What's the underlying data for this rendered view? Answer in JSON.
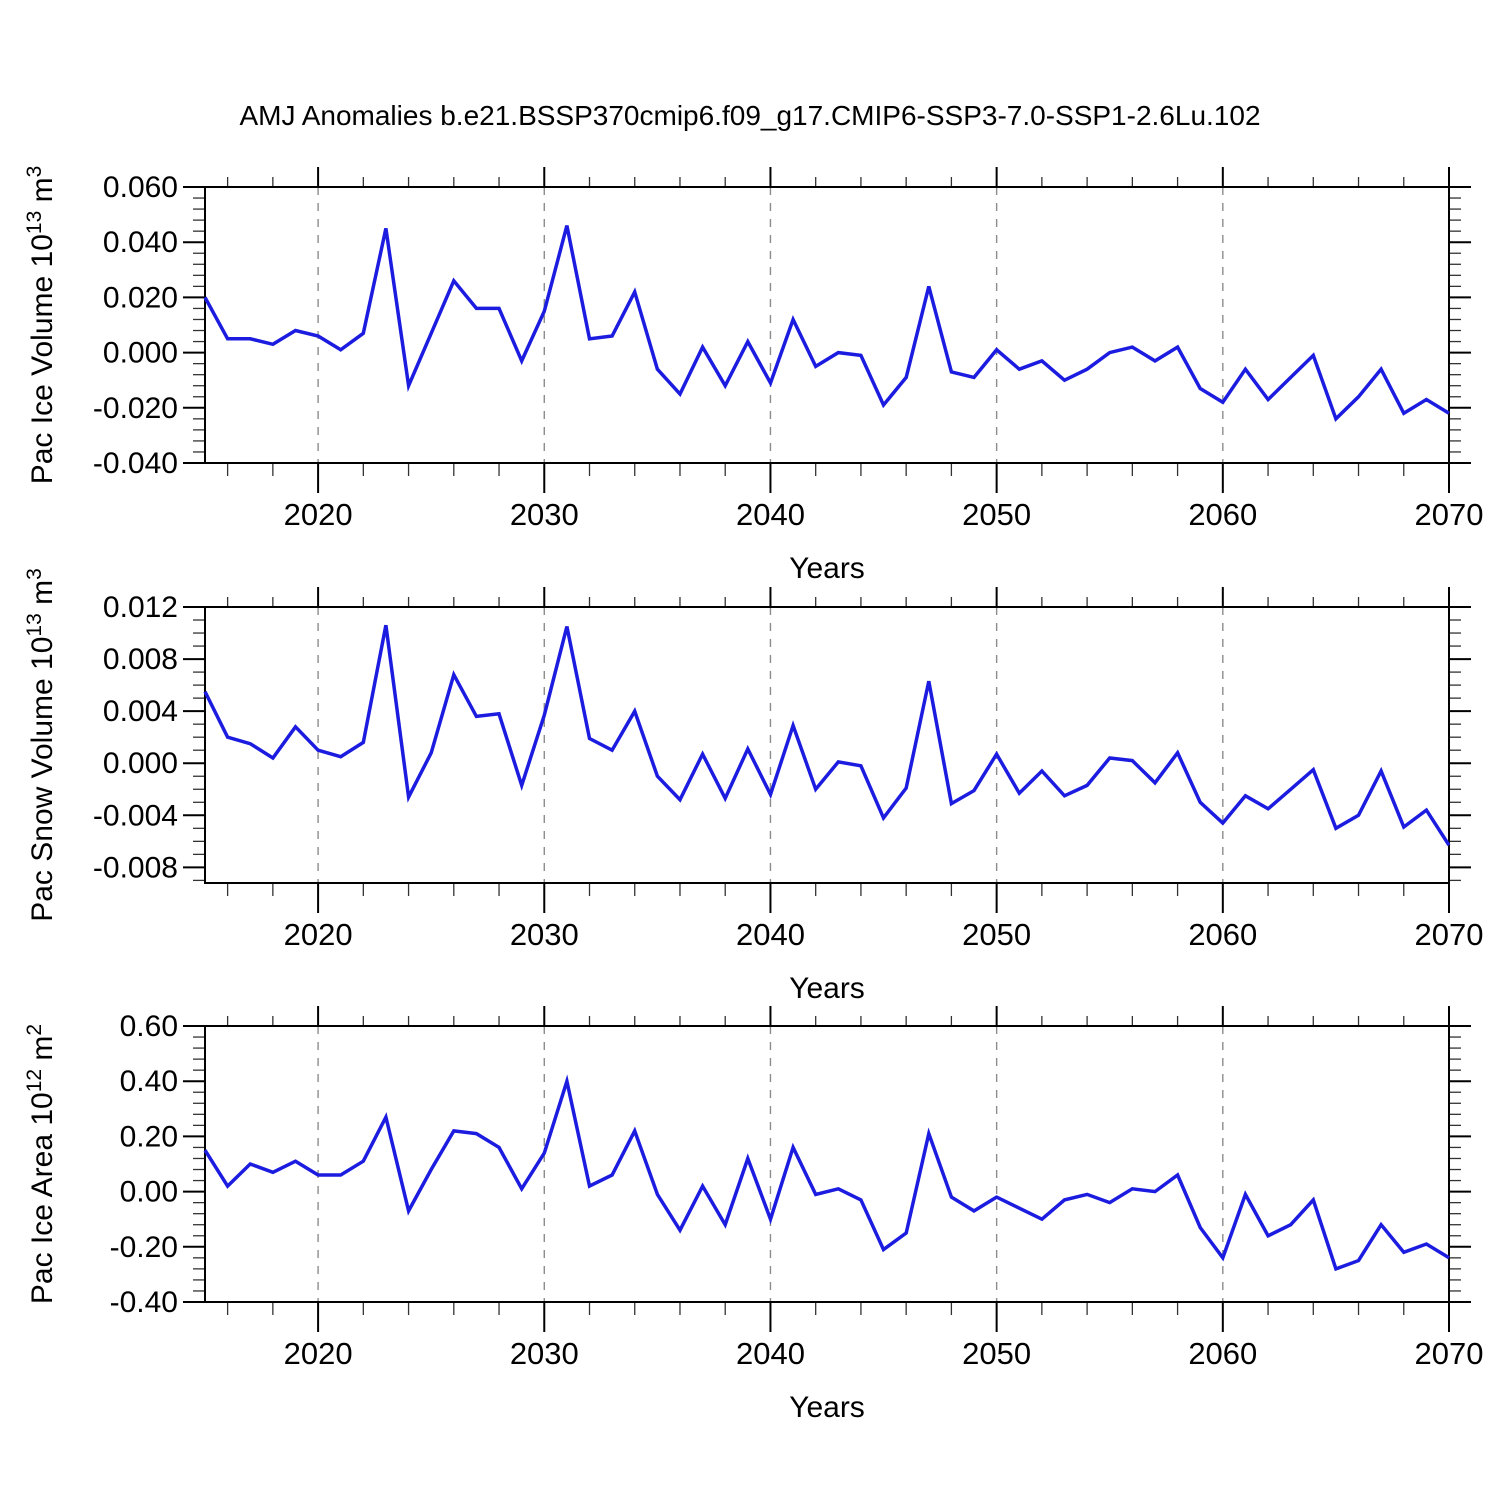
{
  "title": "AMJ Anomalies b.e21.BSSP370cmip6.f09_g17.CMIP6-SSP3-7.0-SSP1-2.6Lu.102",
  "style": {
    "line_color": "#1c1ce0",
    "frame_color": "#000000",
    "grid_color": "#8c8c8c",
    "minor_tick_color": "#333333"
  },
  "x_axis": {
    "label": "Years",
    "range": [
      2015,
      2070
    ],
    "major_ticks": [
      2020,
      2030,
      2040,
      2050,
      2060,
      2070
    ],
    "major_tick_labels": [
      "2020",
      "2030",
      "2040",
      "2050",
      "2060",
      "2070"
    ],
    "minor_tick_step": 2,
    "grid_years": [
      2020,
      2030,
      2040,
      2050,
      2060
    ]
  },
  "chart_data": [
    {
      "type": "line",
      "name": "pac-ice-volume",
      "ylabel_parts": [
        {
          "t": "Pac Ice Volume 10"
        },
        {
          "t": "13",
          "sup": true
        },
        {
          "t": " m"
        },
        {
          "t": "3",
          "sup": true
        }
      ],
      "ylim": [
        -0.04,
        0.06
      ],
      "ytick_values": [
        0.06,
        0.04,
        0.02,
        0.0,
        -0.02,
        -0.04
      ],
      "ytick_labels": [
        "0.060",
        "0.040",
        "0.020",
        "0.000",
        "-0.020",
        "-0.040"
      ],
      "yminor_step": 0.004,
      "x_start": 2015,
      "values": [
        0.02,
        0.005,
        0.005,
        0.003,
        0.008,
        0.006,
        0.001,
        0.007,
        0.045,
        -0.012,
        0.007,
        0.026,
        0.016,
        0.016,
        -0.003,
        0.015,
        0.046,
        0.005,
        0.006,
        0.022,
        -0.006,
        -0.015,
        0.002,
        -0.012,
        0.004,
        -0.011,
        0.012,
        -0.005,
        0.0,
        -0.001,
        -0.019,
        -0.009,
        0.024,
        -0.007,
        -0.009,
        0.001,
        -0.006,
        -0.003,
        -0.01,
        -0.006,
        0.0,
        0.002,
        -0.003,
        0.002,
        -0.013,
        -0.018,
        -0.006,
        -0.017,
        -0.009,
        -0.001,
        -0.024,
        -0.016,
        -0.006,
        -0.022,
        -0.017,
        -0.022
      ]
    },
    {
      "type": "line",
      "name": "pac-snow-volume",
      "ylabel_parts": [
        {
          "t": "Pac Snow Volume 10"
        },
        {
          "t": "13",
          "sup": true
        },
        {
          "t": " m"
        },
        {
          "t": "3",
          "sup": true
        }
      ],
      "ylim": [
        -0.0092,
        0.012
      ],
      "ytick_values": [
        0.012,
        0.008,
        0.004,
        0.0,
        -0.004,
        -0.008
      ],
      "ytick_labels": [
        "0.012",
        "0.008",
        "0.004",
        "0.000",
        "-0.004",
        "-0.008"
      ],
      "yminor_step": 0.001,
      "x_start": 2015,
      "values": [
        0.0055,
        0.002,
        0.0015,
        0.0004,
        0.0028,
        0.001,
        0.0005,
        0.0016,
        0.0106,
        -0.0026,
        0.0008,
        0.0068,
        0.0036,
        0.0038,
        -0.0017,
        0.0037,
        0.0105,
        0.0019,
        0.001,
        0.004,
        -0.001,
        -0.0028,
        0.0007,
        -0.0027,
        0.0011,
        -0.0024,
        0.0029,
        -0.002,
        0.0001,
        -0.0002,
        -0.0042,
        -0.0019,
        0.0063,
        -0.0031,
        -0.0021,
        0.0007,
        -0.0023,
        -0.0006,
        -0.0025,
        -0.0017,
        0.0004,
        0.0002,
        -0.0015,
        0.0008,
        -0.003,
        -0.0046,
        -0.0025,
        -0.0035,
        -0.002,
        -0.0005,
        -0.005,
        -0.004,
        -0.0006,
        -0.0049,
        -0.0036,
        -0.0063
      ]
    },
    {
      "type": "line",
      "name": "pac-ice-area",
      "ylabel_parts": [
        {
          "t": "Pac Ice Area 10"
        },
        {
          "t": "12",
          "sup": true
        },
        {
          "t": " m"
        },
        {
          "t": "2",
          "sup": true
        }
      ],
      "ylim": [
        -0.4,
        0.6
      ],
      "ytick_values": [
        0.6,
        0.4,
        0.2,
        0.0,
        -0.2,
        -0.4
      ],
      "ytick_labels": [
        "0.60",
        "0.40",
        "0.20",
        "0.00",
        "-0.20",
        "-0.40"
      ],
      "yminor_step": 0.04,
      "x_start": 2015,
      "values": [
        0.15,
        0.02,
        0.1,
        0.07,
        0.11,
        0.06,
        0.06,
        0.11,
        0.27,
        -0.07,
        0.08,
        0.22,
        0.21,
        0.16,
        0.01,
        0.14,
        0.4,
        0.02,
        0.06,
        0.22,
        -0.01,
        -0.14,
        0.02,
        -0.12,
        0.12,
        -0.1,
        0.16,
        -0.01,
        0.01,
        -0.03,
        -0.21,
        -0.15,
        0.21,
        -0.02,
        -0.07,
        -0.02,
        -0.06,
        -0.1,
        -0.03,
        -0.01,
        -0.04,
        0.01,
        0.0,
        0.06,
        -0.13,
        -0.24,
        -0.01,
        -0.16,
        -0.12,
        -0.03,
        -0.28,
        -0.25,
        -0.12,
        -0.22,
        -0.19,
        -0.24
      ]
    }
  ]
}
